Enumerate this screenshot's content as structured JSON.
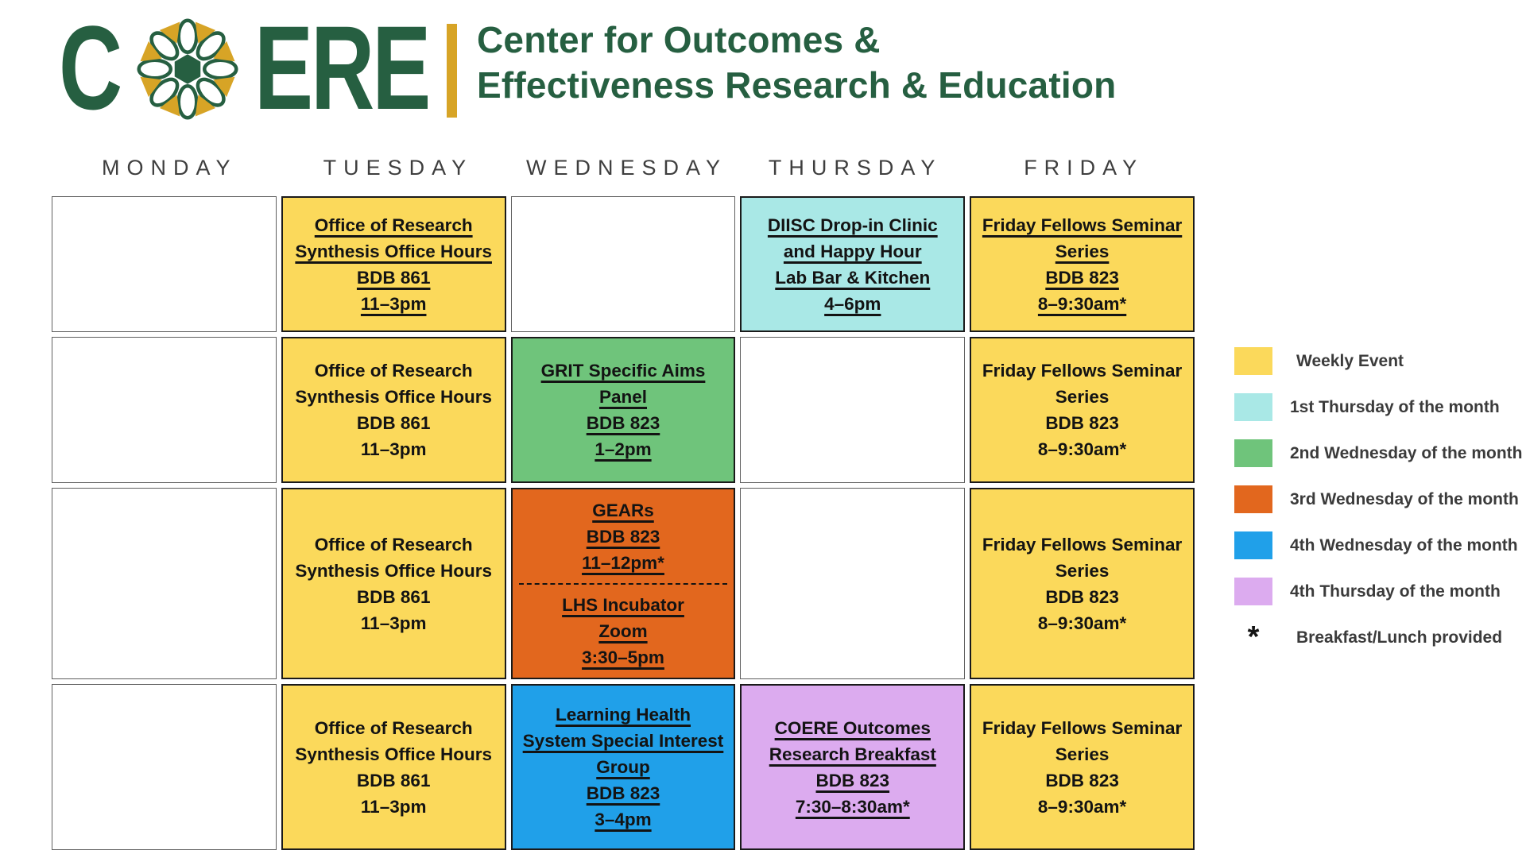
{
  "header": {
    "logo_left": "C",
    "logo_right": "ERE",
    "title_line1": "Center for Outcomes &",
    "title_line2": "Effectiveness Research & Education"
  },
  "days": [
    "MONDAY",
    "TUESDAY",
    "WEDNESDAY",
    "THURSDAY",
    "FRIDAY"
  ],
  "colors": {
    "brand_green": "#265F41",
    "brand_gold": "#D7A426",
    "yellow": "#FBD95B",
    "teal": "#A9E8E6",
    "green": "#6FC47B",
    "orange": "#E2671E",
    "blue": "#20A0E9",
    "purple": "#DCABEF"
  },
  "grid": {
    "rows": [
      {
        "cells": [
          {
            "day": "MONDAY",
            "empty": true
          },
          {
            "day": "TUESDAY",
            "color": "yellow",
            "underline": true,
            "lines": [
              "Office of Research",
              "Synthesis Office Hours",
              "BDB 861",
              "11–3pm"
            ]
          },
          {
            "day": "WEDNESDAY",
            "empty": true
          },
          {
            "day": "THURSDAY",
            "color": "teal",
            "underline": true,
            "lines": [
              "DIISC Drop-in Clinic",
              "and Happy Hour",
              "Lab Bar & Kitchen",
              "4–6pm"
            ]
          },
          {
            "day": "FRIDAY",
            "color": "yellow",
            "underline": true,
            "lines": [
              "Friday Fellows Seminar",
              "Series",
              "BDB 823",
              "8–9:30am*"
            ]
          }
        ]
      },
      {
        "cells": [
          {
            "day": "MONDAY",
            "empty": true
          },
          {
            "day": "TUESDAY",
            "color": "yellow",
            "underline": false,
            "lines": [
              "Office of Research",
              "Synthesis Office Hours",
              "BDB 861",
              "11–3pm"
            ]
          },
          {
            "day": "WEDNESDAY",
            "color": "green",
            "underline": true,
            "lines": [
              "GRIT Specific Aims",
              "Panel",
              "BDB 823",
              "1–2pm"
            ]
          },
          {
            "day": "THURSDAY",
            "empty": true
          },
          {
            "day": "FRIDAY",
            "color": "yellow",
            "underline": false,
            "lines": [
              "Friday Fellows Seminar",
              "Series",
              "BDB 823",
              "8–9:30am*"
            ]
          }
        ]
      },
      {
        "cells": [
          {
            "day": "MONDAY",
            "empty": true
          },
          {
            "day": "TUESDAY",
            "color": "yellow",
            "underline": false,
            "lines": [
              "Office of Research",
              "Synthesis Office Hours",
              "BDB 861",
              "11–3pm"
            ]
          },
          {
            "day": "WEDNESDAY",
            "color": "orange",
            "underline": true,
            "sections": [
              [
                "GEARs",
                "BDB 823",
                "11–12pm*"
              ],
              [
                "LHS Incubator",
                "Zoom",
                "3:30–5pm"
              ]
            ]
          },
          {
            "day": "THURSDAY",
            "empty": true
          },
          {
            "day": "FRIDAY",
            "color": "yellow",
            "underline": false,
            "lines": [
              "Friday Fellows Seminar",
              "Series",
              "BDB 823",
              "8–9:30am*"
            ]
          }
        ]
      },
      {
        "cells": [
          {
            "day": "MONDAY",
            "empty": true
          },
          {
            "day": "TUESDAY",
            "color": "yellow",
            "underline": false,
            "lines": [
              "Office of Research",
              "Synthesis Office Hours",
              "BDB 861",
              "11–3pm"
            ]
          },
          {
            "day": "WEDNESDAY",
            "color": "blue",
            "underline": true,
            "lines": [
              "Learning Health",
              "System Special Interest",
              "Group",
              "BDB 823",
              "3–4pm"
            ]
          },
          {
            "day": "THURSDAY",
            "color": "purple",
            "underline": true,
            "lines": [
              "COERE Outcomes",
              "Research Breakfast",
              "BDB 823",
              "7:30–8:30am*"
            ]
          },
          {
            "day": "FRIDAY",
            "color": "yellow",
            "underline": false,
            "lines": [
              "Friday Fellows Seminar",
              "Series",
              "BDB 823",
              "8–9:30am*"
            ]
          }
        ]
      }
    ]
  },
  "legend": {
    "items": [
      {
        "color": "yellow",
        "label": "Weekly Event"
      },
      {
        "color": "teal",
        "label": "1st Thursday of the month"
      },
      {
        "color": "green",
        "label": "2nd Wednesday of the month"
      },
      {
        "color": "orange",
        "label": "3rd Wednesday of the month"
      },
      {
        "color": "blue",
        "label": "4th Wednesday of the month"
      },
      {
        "color": "purple",
        "label": "4th Thursday of the month"
      }
    ],
    "note": {
      "symbol": "*",
      "label": "Breakfast/Lunch provided"
    }
  }
}
